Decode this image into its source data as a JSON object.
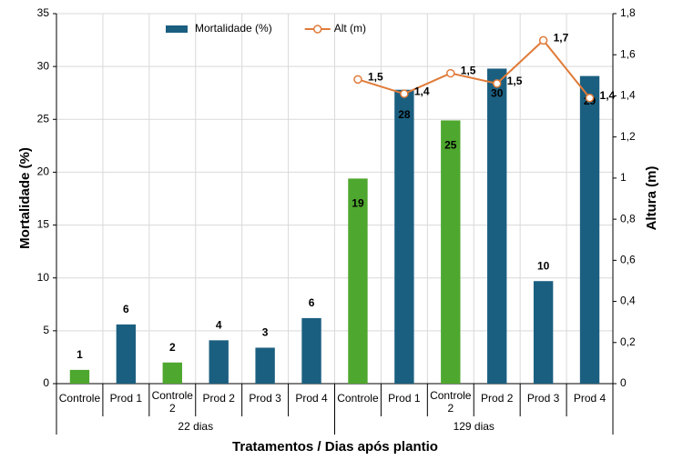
{
  "chart_data": {
    "type": "bar",
    "x_title": "Tratamentos / Dias após plantio",
    "y_title": "Mortalidade (%)",
    "y2_title": "Altura (m)",
    "categories": [
      "Controle",
      "Prod 1",
      "Controle 2",
      "Prod 2",
      "Prod 3",
      "Prod 4",
      "Controle",
      "Prod 1",
      "Controle 2",
      "Prod 2",
      "Prod 3",
      "Prod 4"
    ],
    "x_groups": [
      "22 dias",
      "129 dias"
    ],
    "series": [
      {
        "name": "Mortalidade (%)",
        "type": "bar",
        "color": "#1b5f80",
        "colors": [
          "#4ea72e",
          "#1b5f80",
          "#4ea72e",
          "#1b5f80",
          "#1b5f80",
          "#1b5f80",
          "#4ea72e",
          "#1b5f80",
          "#4ea72e",
          "#1b5f80",
          "#1b5f80",
          "#1b5f80"
        ],
        "values": [
          1.3,
          5.6,
          2.0,
          4.1,
          3.4,
          6.2,
          19.4,
          27.8,
          24.9,
          29.8,
          9.7,
          29.1
        ],
        "value_labels": [
          "1",
          "6",
          "2",
          "4",
          "3",
          "6",
          "19",
          "28",
          "25",
          "30",
          "10",
          "29"
        ]
      },
      {
        "name": "Alt (m)",
        "type": "line",
        "axis": "y2",
        "color": "#e07b39",
        "values": [
          null,
          null,
          null,
          null,
          null,
          null,
          1.48,
          1.41,
          1.51,
          1.46,
          1.67,
          1.39
        ],
        "value_labels": [
          null,
          null,
          null,
          null,
          null,
          null,
          "1,5",
          "1,4",
          "1,5",
          "1,5",
          "1,7",
          "1,4"
        ]
      }
    ],
    "ylim": [
      0,
      35
    ],
    "yticks": [
      0,
      5,
      10,
      15,
      20,
      25,
      30,
      35
    ],
    "y2lim": [
      0,
      1.8
    ],
    "y2ticks": [
      0,
      {
        "value": 0.2,
        "label": "0,2"
      },
      {
        "value": 0.4,
        "label": "0,4"
      },
      {
        "value": 0.6,
        "label": "0,6"
      },
      {
        "value": 0.8,
        "label": "0,8"
      },
      1,
      {
        "value": 1.2,
        "label": "1,2"
      },
      {
        "value": 1.4,
        "label": "1,4"
      },
      {
        "value": 1.6,
        "label": "1,6"
      },
      {
        "value": 1.8,
        "label": "1,8"
      }
    ],
    "grid": true,
    "legend": "top"
  }
}
